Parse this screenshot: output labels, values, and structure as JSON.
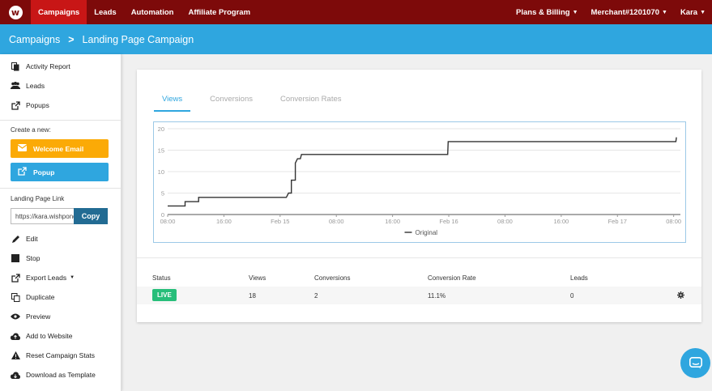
{
  "topnav": {
    "left_items": [
      {
        "label": "Campaigns"
      },
      {
        "label": "Leads"
      },
      {
        "label": "Automation"
      },
      {
        "label": "Affiliate Program"
      }
    ],
    "right_items": [
      {
        "label": "Plans & Billing"
      },
      {
        "label": "Merchant#1201070"
      },
      {
        "label": "Kara"
      }
    ],
    "logo_letter": "w"
  },
  "breadcrumb": {
    "root": "Campaigns",
    "sep": ">",
    "current": "Landing Page Campaign"
  },
  "sidebar": {
    "top_items": [
      {
        "label": "Activity Report",
        "icon": "file-icon"
      },
      {
        "label": "Leads",
        "icon": "users-icon"
      },
      {
        "label": "Popups",
        "icon": "external-link-icon"
      }
    ],
    "create_label": "Create a new:",
    "create_buttons": [
      {
        "label": "Welcome Email",
        "icon": "envelope-icon"
      },
      {
        "label": "Popup",
        "icon": "external-link-icon"
      }
    ],
    "link_label": "Landing Page Link",
    "link_value": "https://kara.wishpond.com",
    "copy_label": "Copy",
    "actions": [
      {
        "label": "Edit",
        "icon": "pencil-icon"
      },
      {
        "label": "Stop",
        "icon": "stop-icon"
      },
      {
        "label": "Export Leads",
        "icon": "external-link-icon"
      },
      {
        "label": "Duplicate",
        "icon": "copy-icon"
      },
      {
        "label": "Preview",
        "icon": "eye-icon"
      },
      {
        "label": "Add to Website",
        "icon": "cloud-upload-icon"
      },
      {
        "label": "Reset Campaign Stats",
        "icon": "warning-icon"
      },
      {
        "label": "Download as Template",
        "icon": "cloud-download-icon"
      }
    ]
  },
  "tabs": [
    {
      "label": "Views"
    },
    {
      "label": "Conversions"
    },
    {
      "label": "Conversion Rates"
    }
  ],
  "chart_data": {
    "type": "line",
    "ylim": [
      0,
      20
    ],
    "yticks": [
      "0",
      "5",
      "10",
      "15",
      "20"
    ],
    "xticks": [
      "08:00",
      "16:00",
      "Feb 15",
      "08:00",
      "16:00",
      "Feb 16",
      "08:00",
      "16:00",
      "Feb 17",
      "08:00"
    ],
    "xlim": [
      0,
      9.12
    ],
    "series": [
      {
        "name": "Original",
        "color": "#333333",
        "x": [
          0,
          0.31,
          0.31,
          0.55,
          0.55,
          2.11,
          2.15,
          2.2,
          2.2,
          2.27,
          2.27,
          2.31,
          2.36,
          2.38,
          2.38,
          4.98,
          4.99,
          9.04,
          9.05
        ],
        "y": [
          2,
          2,
          3,
          3,
          4,
          4,
          5,
          5,
          8,
          8,
          12,
          13,
          13,
          14,
          14,
          14,
          17,
          17,
          18
        ]
      }
    ],
    "legend": "bottom-center",
    "grid": true
  },
  "stats": {
    "headers": [
      "Status",
      "Views",
      "Conversions",
      "Conversion Rate",
      "Leads"
    ],
    "status": "LIVE",
    "views": "18",
    "conversions": "2",
    "conversion_rate": "11.1%",
    "leads": "0"
  },
  "colors": {
    "brand_red": "#7d0a0a",
    "active_red": "#c81616",
    "accent_blue": "#2fa6df",
    "live_green": "#27be7a"
  }
}
